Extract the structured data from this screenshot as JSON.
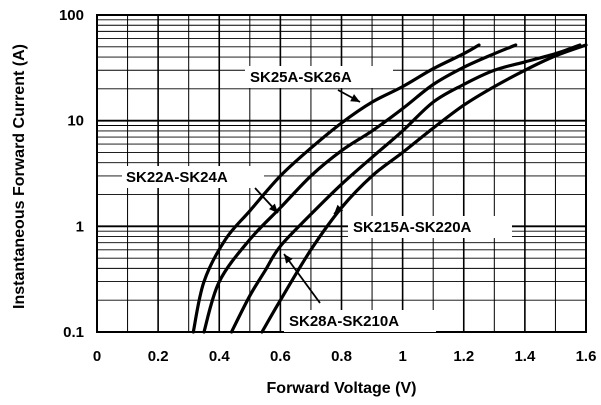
{
  "chart_data": {
    "type": "line",
    "title": "",
    "xlabel": "Forward Voltage (V)",
    "ylabel": "Instantaneous Forward Current (A)",
    "xlim": [
      0,
      1.6
    ],
    "ylim": [
      0.1,
      100
    ],
    "y_scale": "log",
    "grid": true,
    "x_ticks": [
      0,
      0.2,
      0.4,
      0.6,
      0.8,
      1,
      1.2,
      1.4,
      1.6
    ],
    "x_tick_labels": [
      "0",
      "0.2",
      "0.4",
      "0.6",
      "0.8",
      "1",
      "1.2",
      "1.4",
      "1.6"
    ],
    "y_ticks": [
      0.1,
      1,
      10,
      100
    ],
    "y_tick_labels": [
      "0.1",
      "1",
      "10",
      "100"
    ],
    "series": [
      {
        "name": "SK25A-SK26A",
        "points": [
          [
            0.315,
            0.1
          ],
          [
            0.35,
            0.3
          ],
          [
            0.42,
            0.75
          ],
          [
            0.5,
            1.4
          ],
          [
            0.6,
            3.0
          ],
          [
            0.7,
            5.5
          ],
          [
            0.8,
            9.5
          ],
          [
            0.9,
            15
          ],
          [
            1.0,
            21
          ],
          [
            1.1,
            31
          ],
          [
            1.2,
            43
          ],
          [
            1.25,
            52
          ]
        ]
      },
      {
        "name": "SK22A-SK24A",
        "points": [
          [
            0.35,
            0.1
          ],
          [
            0.4,
            0.3
          ],
          [
            0.5,
            0.75
          ],
          [
            0.6,
            1.5
          ],
          [
            0.7,
            3.0
          ],
          [
            0.8,
            5.2
          ],
          [
            0.9,
            8.0
          ],
          [
            1.0,
            13
          ],
          [
            1.1,
            22
          ],
          [
            1.2,
            32
          ],
          [
            1.3,
            43
          ],
          [
            1.37,
            52
          ]
        ]
      },
      {
        "name": "SK28A-SK210A",
        "points": [
          [
            0.44,
            0.1
          ],
          [
            0.5,
            0.22
          ],
          [
            0.55,
            0.38
          ],
          [
            0.6,
            0.65
          ],
          [
            0.7,
            1.3
          ],
          [
            0.8,
            2.5
          ],
          [
            0.9,
            4.5
          ],
          [
            1.0,
            8.0
          ],
          [
            1.1,
            15
          ],
          [
            1.2,
            22
          ],
          [
            1.3,
            30
          ],
          [
            1.4,
            36
          ],
          [
            1.5,
            43
          ],
          [
            1.58,
            52
          ]
        ]
      },
      {
        "name": "SK215A-SK220A",
        "points": [
          [
            0.54,
            0.1
          ],
          [
            0.6,
            0.2
          ],
          [
            0.7,
            0.6
          ],
          [
            0.8,
            1.5
          ],
          [
            0.9,
            3.0
          ],
          [
            1.0,
            5.0
          ],
          [
            1.1,
            8.5
          ],
          [
            1.2,
            14
          ],
          [
            1.3,
            21
          ],
          [
            1.4,
            30
          ],
          [
            1.5,
            41
          ],
          [
            1.6,
            52
          ]
        ]
      }
    ],
    "annotations": [
      {
        "text": "SK25A-SK26A",
        "series": "SK25A-SK26A"
      },
      {
        "text": "SK22A-SK24A",
        "series": "SK22A-SK24A"
      },
      {
        "text": "SK215A-SK220A",
        "series": "SK215A-SK220A"
      },
      {
        "text": "SK28A-SK210A",
        "series": "SK28A-SK210A"
      }
    ]
  }
}
